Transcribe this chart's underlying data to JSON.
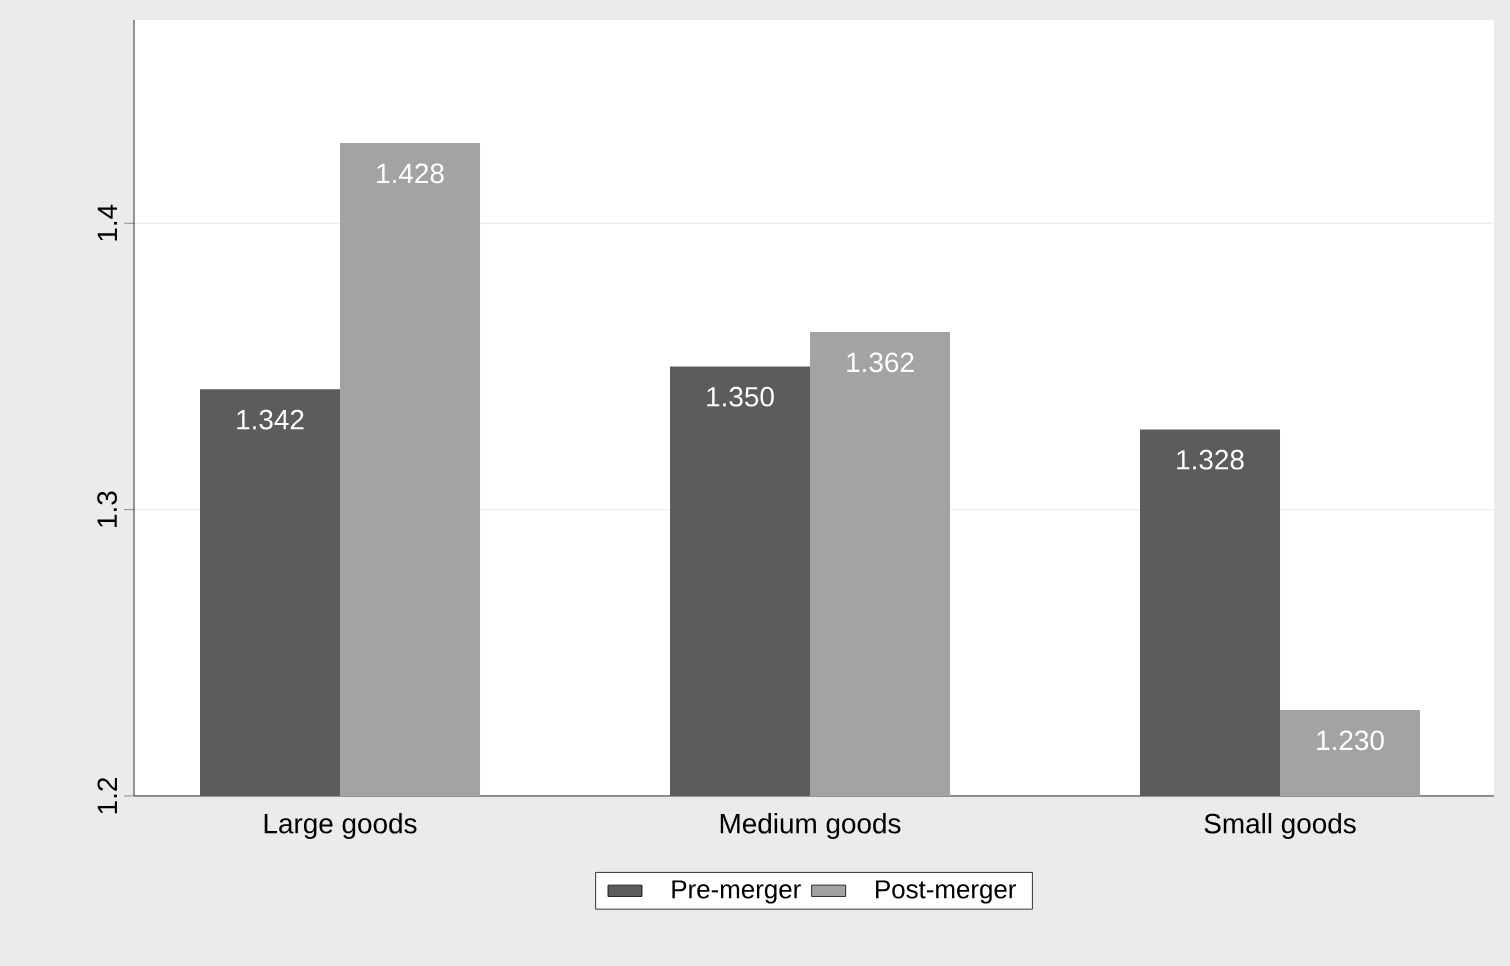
{
  "chart_data": {
    "type": "bar",
    "categories": [
      "Large goods",
      "Medium goods",
      "Small goods"
    ],
    "series": [
      {
        "name": "Pre-merger",
        "color": "#5c5c5c",
        "values": [
          1.342,
          1.35,
          1.328
        ],
        "value_labels": [
          "1.342",
          "1.350",
          "1.328"
        ]
      },
      {
        "name": "Post-merger",
        "color": "#a3a3a3",
        "values": [
          1.428,
          1.362,
          1.23
        ],
        "value_labels": [
          "1.428",
          "1.362",
          "1.230"
        ]
      }
    ],
    "ylim": [
      1.2,
      1.471
    ],
    "yticks": [
      1.2,
      1.3,
      1.4
    ],
    "grid": "y",
    "legend": "bottom"
  }
}
